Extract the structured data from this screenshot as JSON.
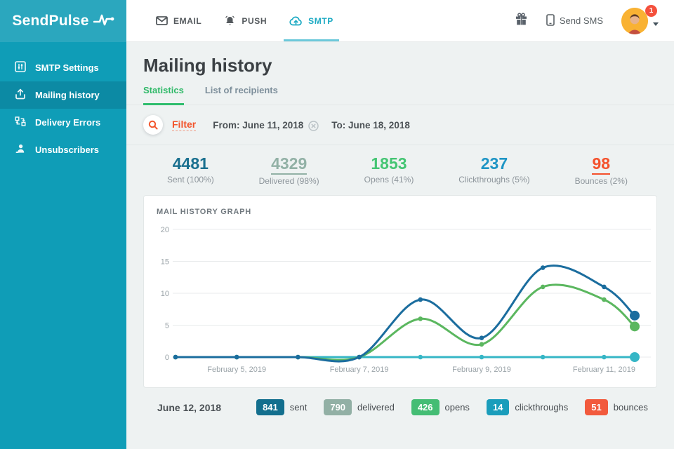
{
  "brand": {
    "name": "SendPulse"
  },
  "header": {
    "nav_tabs": [
      {
        "label": "EMAIL",
        "icon": "envelope-icon",
        "active": false
      },
      {
        "label": "PUSH",
        "icon": "bell-icon",
        "active": false
      },
      {
        "label": "SMTP",
        "icon": "cloud-icon",
        "active": true
      }
    ],
    "send_sms_label": "Send SMS",
    "notification_count": "1"
  },
  "sidebar": {
    "items": [
      {
        "label": "SMTP Settings",
        "icon": "settings-sliders-icon",
        "active": false
      },
      {
        "label": "Mailing history",
        "icon": "mailing-history-icon",
        "active": true
      },
      {
        "label": "Delivery Errors",
        "icon": "delivery-errors-icon",
        "active": false
      },
      {
        "label": "Unsubscribers",
        "icon": "unsubscriber-person-icon",
        "active": false
      }
    ]
  },
  "page": {
    "title": "Mailing history",
    "tabs": [
      {
        "label": "Statistics",
        "active": true
      },
      {
        "label": "List of recipients",
        "active": false
      }
    ],
    "filter": {
      "label": "Filter",
      "from": "From: June 11, 2018",
      "to": "To: June 18, 2018"
    },
    "stats": [
      {
        "value": "4481",
        "label": "Sent (100%)",
        "color": "#1a708f",
        "underlined": false
      },
      {
        "value": "4329",
        "label": "Delivered (98%)",
        "color": "#92b1a6",
        "underlined": true
      },
      {
        "value": "1853",
        "label": "Opens (41%)",
        "color": "#44c573",
        "underlined": false
      },
      {
        "value": "237",
        "label": "Clickthroughs (5%)",
        "color": "#1e95c5",
        "underlined": false
      },
      {
        "value": "98",
        "label": "Bounces (2%)",
        "color": "#f4512c",
        "underlined": true
      }
    ],
    "panel_title": "MAIL HISTORY GRAPH",
    "selected_day": {
      "date": "June 12, 2018",
      "badges": [
        {
          "value": "841",
          "label": "sent",
          "color": "#136f8e"
        },
        {
          "value": "790",
          "label": "delivered",
          "color": "#92b0a5"
        },
        {
          "value": "426",
          "label": "opens",
          "color": "#44bd74"
        },
        {
          "value": "14",
          "label": "clickthroughs",
          "color": "#1a9dbb"
        },
        {
          "value": "51",
          "label": "bounces",
          "color": "#f25a3d"
        }
      ]
    }
  },
  "chart_data": {
    "type": "line",
    "title": "MAIL HISTORY GRAPH",
    "x_positions": [
      0,
      1,
      2,
      3,
      4,
      5,
      6,
      7,
      7.5
    ],
    "x_tick_labels": [
      {
        "pos": 1,
        "label": "February 5, 2019"
      },
      {
        "pos": 3,
        "label": "February 7, 2019"
      },
      {
        "pos": 5,
        "label": "February 9, 2019"
      },
      {
        "pos": 7,
        "label": "February 11, 2019"
      }
    ],
    "ylim": [
      0,
      20
    ],
    "yticks": [
      0,
      5,
      10,
      15,
      20
    ],
    "grid": true,
    "legend_position": "none",
    "series": [
      {
        "name": "sent",
        "color": "#1b6d9e",
        "values": [
          0,
          0,
          0,
          0,
          9,
          3,
          14,
          11,
          6.5
        ]
      },
      {
        "name": "opens",
        "color": "#5bb75f",
        "values": [
          0,
          0,
          0,
          0,
          6,
          2,
          11,
          9,
          4.8
        ]
      },
      {
        "name": "clickthroughs",
        "color": "#36b6c6",
        "values": [
          0,
          0,
          0,
          0,
          0,
          0,
          0,
          0,
          0
        ]
      }
    ]
  }
}
